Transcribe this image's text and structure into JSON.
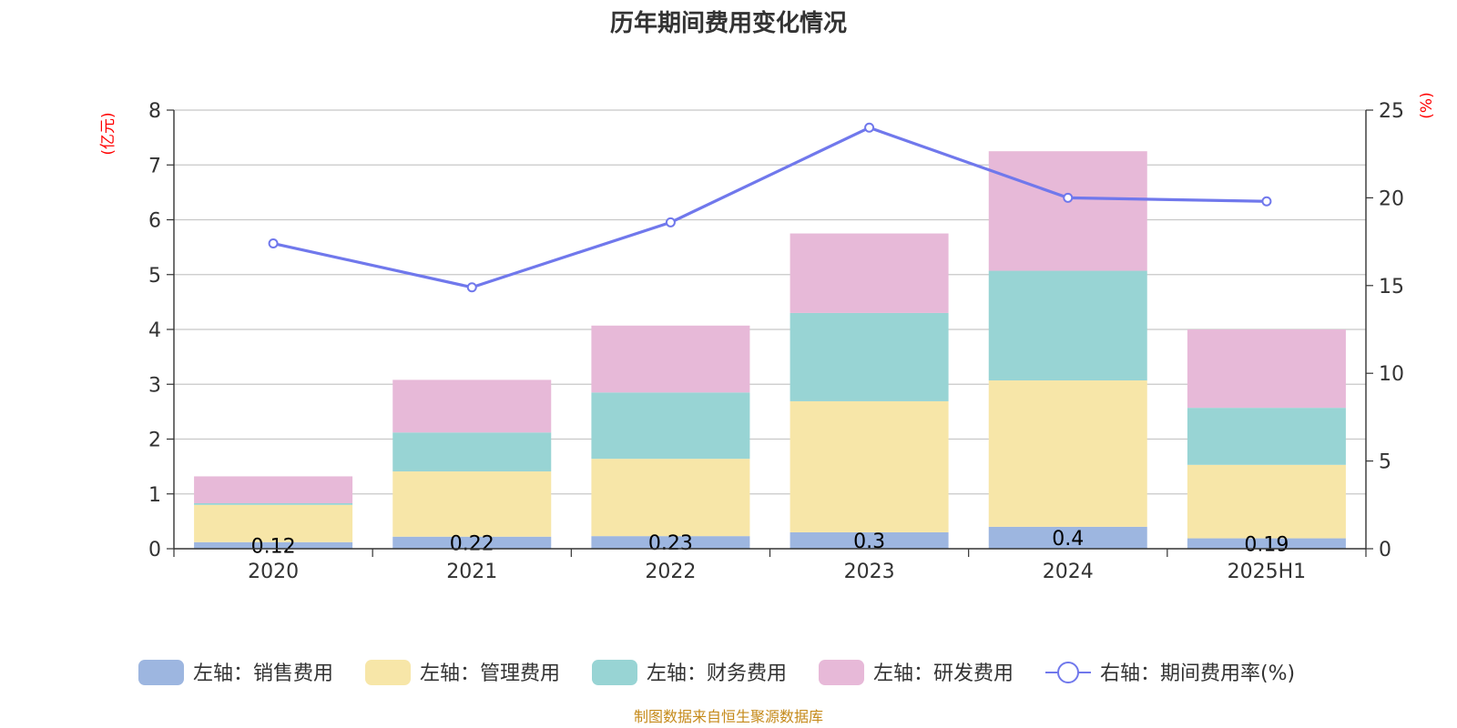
{
  "chart_data": {
    "type": "bar",
    "title": "历年期间费用变化情况",
    "categories": [
      "2020",
      "2021",
      "2022",
      "2023",
      "2024",
      "2025H1"
    ],
    "left_axis": {
      "unit": "(亿元)",
      "ylim": [
        0,
        8
      ],
      "ticks": [
        "0",
        "1",
        "2",
        "3",
        "4",
        "5",
        "6",
        "7",
        "8"
      ]
    },
    "right_axis": {
      "unit": "(%)",
      "ylim": [
        0,
        25
      ],
      "ticks": [
        "0",
        "5",
        "10",
        "15",
        "20",
        "25"
      ]
    },
    "series": [
      {
        "name": "左轴：销售费用",
        "color": "#9db6e0",
        "values": [
          0.12,
          0.22,
          0.23,
          0.3,
          0.4,
          0.19
        ],
        "labels": [
          "0.12",
          "0.22",
          "0.23",
          "0.3",
          "0.4",
          "0.19"
        ]
      },
      {
        "name": "左轴：管理费用",
        "color": "#f7e6a8",
        "values": [
          0.68,
          1.19,
          1.41,
          2.39,
          2.67,
          1.34
        ]
      },
      {
        "name": "左轴：财务费用",
        "color": "#98d4d4",
        "values": [
          0.03,
          0.71,
          1.21,
          1.61,
          2.0,
          1.04
        ]
      },
      {
        "name": "左轴：研发费用",
        "color": "#e7b9d8",
        "values": [
          0.49,
          0.96,
          1.22,
          1.45,
          2.18,
          1.43
        ]
      }
    ],
    "line": {
      "name": "右轴：期间费用率(%)",
      "color": "#7078ec",
      "values": [
        17.4,
        14.9,
        18.6,
        24.0,
        20.0,
        19.8
      ]
    },
    "grid": true,
    "legend_position": "bottom"
  },
  "footer": {
    "source": "制图数据来自恒生聚源数据库"
  }
}
